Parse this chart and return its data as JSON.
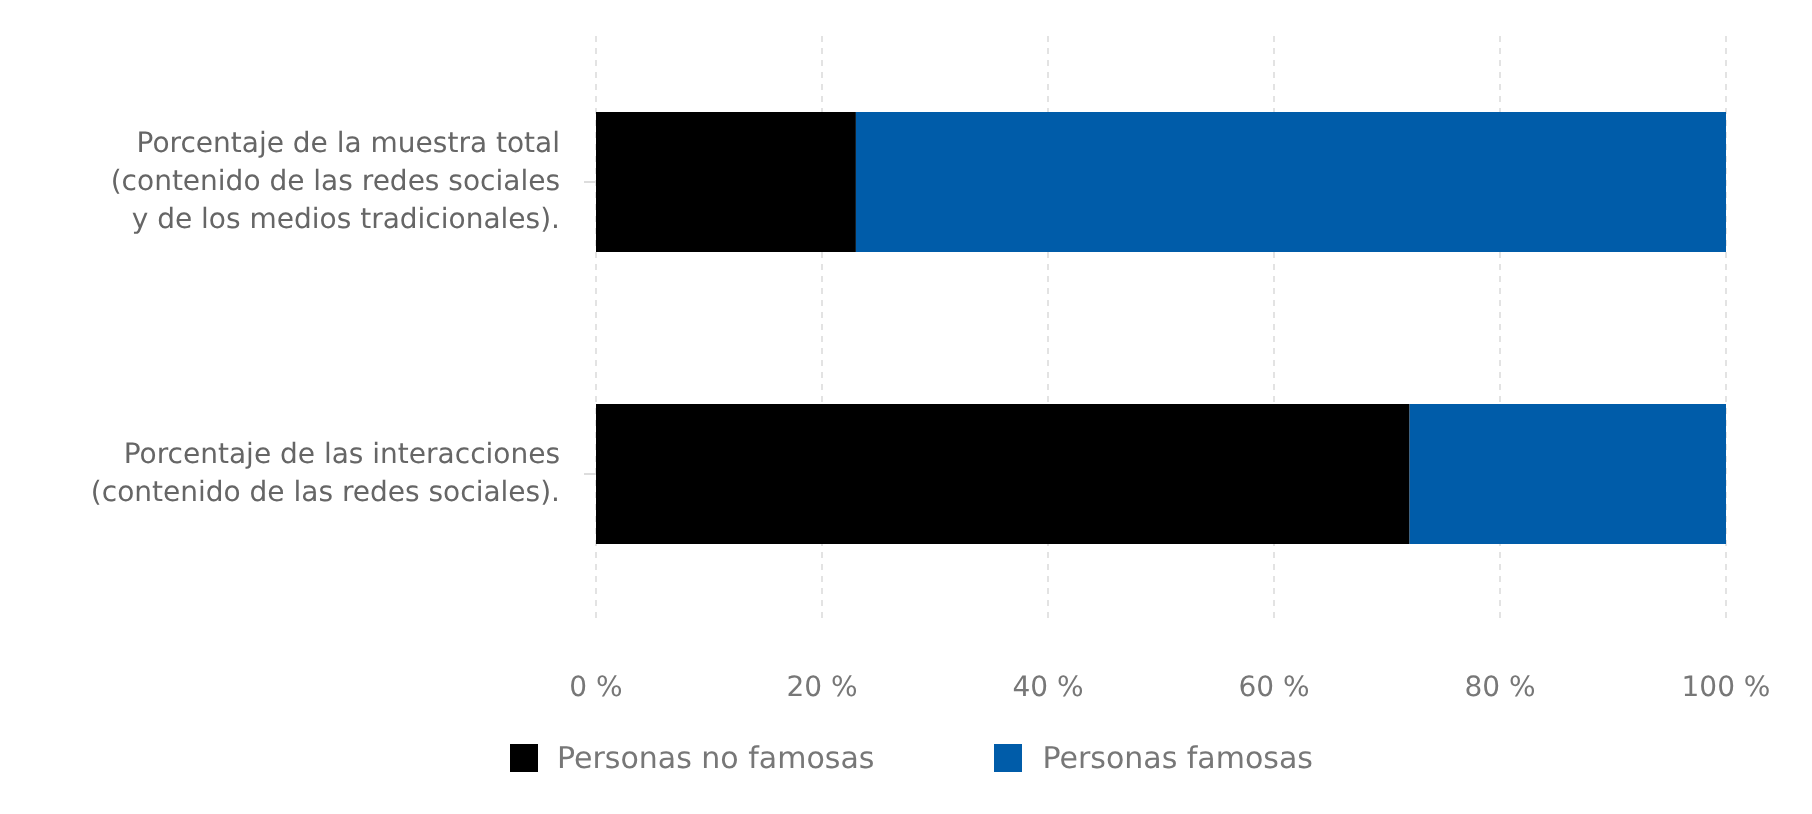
{
  "chart_data": {
    "type": "bar",
    "orientation": "horizontal",
    "stacked": true,
    "categories": [
      "Porcentaje de la muestra total (contenido de las redes sociales y de los medios tradicionales).",
      "Porcentaje de las interacciones (contenido de las redes sociales)."
    ],
    "series": [
      {
        "name": "Personas no famosas",
        "color": "#000000",
        "values": [
          23,
          72
        ]
      },
      {
        "name": "Personas famosas",
        "color": "#005ca9",
        "values": [
          77,
          28
        ]
      }
    ],
    "xlim": [
      0,
      100
    ],
    "xticks": [
      {
        "value": 0,
        "label": "0 %"
      },
      {
        "value": 20,
        "label": "20 %"
      },
      {
        "value": 40,
        "label": "40 %"
      },
      {
        "value": 60,
        "label": "60 %"
      },
      {
        "value": 80,
        "label": "80 %"
      },
      {
        "value": 100,
        "label": "100 %"
      }
    ],
    "grid": "x",
    "legend": "bottom"
  }
}
